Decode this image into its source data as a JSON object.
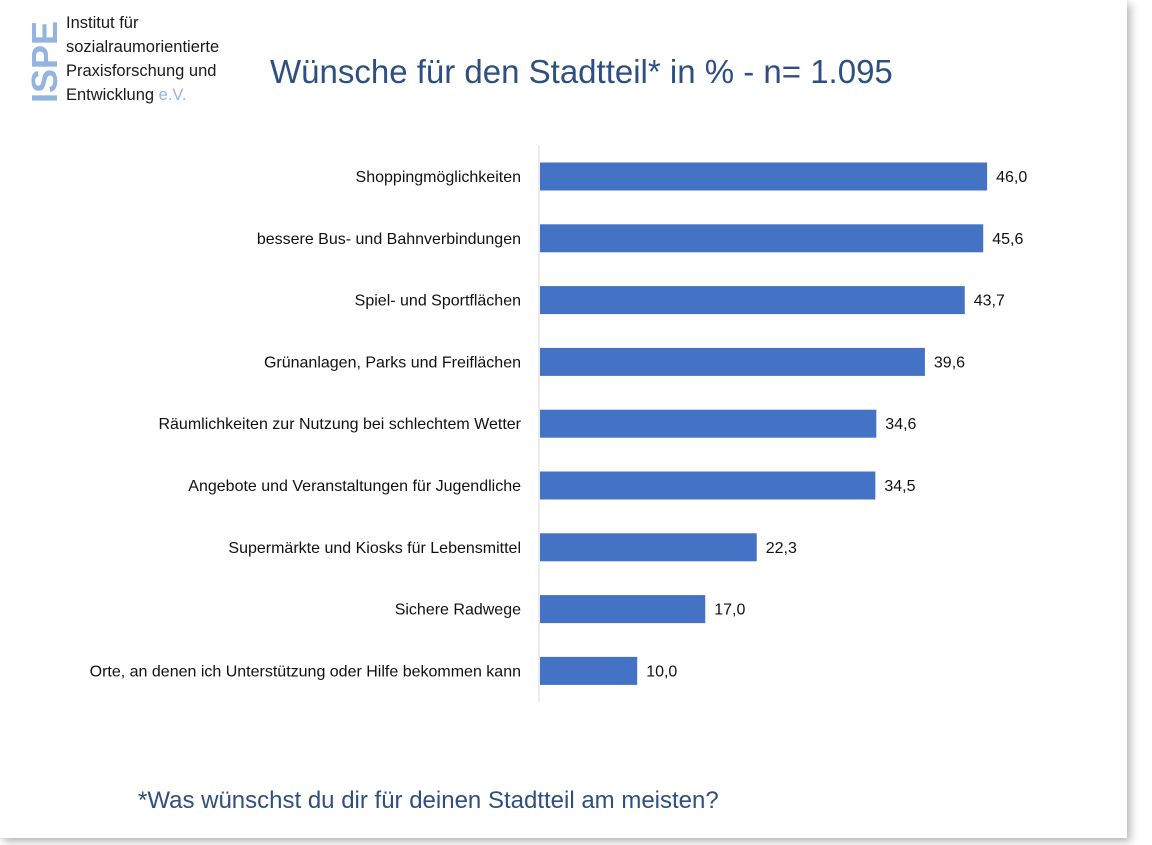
{
  "logo": {
    "mark": "ISPE",
    "line1": "Institut für",
    "line2": "sozialraumorientierte",
    "line3": "Praxisforschung und",
    "line4": "Entwicklung",
    "suffix": "e.V."
  },
  "colors": {
    "bar": "#4472c4",
    "title": "#2e4f82",
    "logo_accent": "#93b4de"
  },
  "footnote": "*Was wünschst du dir für deinen Stadtteil am meisten?",
  "chart_data": {
    "type": "bar",
    "orientation": "horizontal",
    "title": "Wünsche für den Stadtteil* in % - n= 1.095",
    "categories": [
      "Shoppingmöglichkeiten",
      "bessere Bus- und Bahnverbindungen",
      "Spiel- und Sportflächen",
      "Grünanlagen, Parks und Freiflächen",
      "Räumlichkeiten zur Nutzung bei schlechtem Wetter",
      "Angebote und Veranstaltungen für Jugendliche",
      "Supermärkte und Kiosks für Lebensmittel",
      "Sichere Radwege",
      "Orte, an denen ich Unterstützung oder Hilfe bekommen kann"
    ],
    "values": [
      46.0,
      45.6,
      43.7,
      39.6,
      34.6,
      34.5,
      22.3,
      17.0,
      10.0
    ],
    "value_labels": [
      "46,0",
      "45,6",
      "43,7",
      "39,6",
      "34,6",
      "34,5",
      "22,3",
      "17,0",
      "10,0"
    ],
    "xlim": [
      0,
      50
    ],
    "grid": false,
    "legend": "none"
  }
}
